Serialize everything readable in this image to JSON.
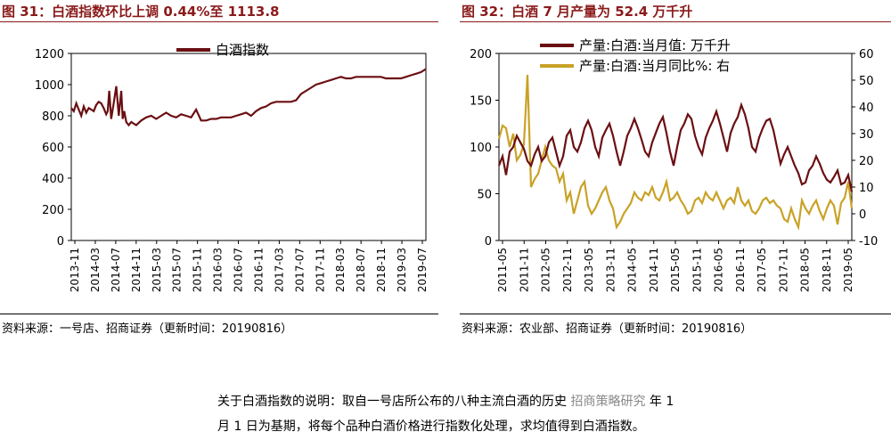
{
  "left": {
    "title": "图 31：白酒指数环比上调 0.44%至 1113.8",
    "source": "资料来源：一号店、招商证券（更新时间：20190816）"
  },
  "right": {
    "title": "图 32：白酒 7 月产量为 52.4 万千升",
    "source": "资料来源：农业部、招商证券（更新时间：20190816）"
  },
  "note": {
    "line1": "关于白酒指数的说明：取自一号店所公布的八种主流白酒的历史",
    "line1_end": "年 1",
    "watermark": "招商策略研究",
    "line2": "月 1 日为基期，将每个品种白酒价格进行指数化处理，求均值得到白酒指数。"
  },
  "colors": {
    "title": "#8B1A1A",
    "index": "#6B0F12",
    "yoy": "#C9A227"
  },
  "chart_data": [
    {
      "type": "line",
      "legend_position": "top",
      "grid": false,
      "ylim": [
        0,
        1200
      ],
      "yticks": [
        "0",
        "200",
        "400",
        "600",
        "800",
        "1000",
        "1200"
      ],
      "xticks": [
        "2013-11",
        "2014-03",
        "2014-07",
        "2014-11",
        "2015-03",
        "2015-07",
        "2015-11",
        "2016-03",
        "2016-07",
        "2016-11",
        "2017-03",
        "2017-07",
        "2017-11",
        "2018-03",
        "2018-07",
        "2018-11",
        "2019-03",
        "2019-07"
      ],
      "series": [
        {
          "name": "白酒指数",
          "color": "#6B0F12",
          "x": [
            0,
            0.5,
            1,
            1.5,
            2,
            2.5,
            3,
            3.5,
            4,
            4.5,
            5,
            5.5,
            6,
            6.5,
            7,
            7.3,
            7.6,
            8,
            8.5,
            9,
            9.5,
            10,
            10.3,
            10.6,
            11,
            11.5,
            12,
            12.5,
            13,
            14,
            15,
            16,
            17,
            18,
            19,
            20,
            21,
            22,
            23,
            24,
            25,
            26,
            27,
            28,
            29,
            30,
            31,
            32,
            33,
            34,
            35,
            36,
            37,
            38,
            39,
            40,
            41,
            42,
            43,
            44,
            45,
            46,
            47,
            48,
            49,
            50,
            51,
            52,
            53,
            54,
            55,
            56,
            57,
            58,
            59,
            60,
            61,
            62,
            63,
            64,
            65,
            66,
            67,
            68,
            69,
            70,
            71
          ],
          "values": [
            850,
            830,
            880,
            840,
            800,
            860,
            820,
            850,
            840,
            830,
            870,
            890,
            880,
            850,
            810,
            830,
            960,
            780,
            880,
            990,
            800,
            960,
            780,
            830,
            760,
            740,
            760,
            750,
            740,
            770,
            790,
            800,
            780,
            800,
            820,
            800,
            790,
            810,
            800,
            790,
            840,
            770,
            770,
            780,
            780,
            790,
            790,
            790,
            800,
            810,
            820,
            800,
            830,
            850,
            860,
            880,
            890,
            890,
            890,
            890,
            900,
            940,
            960,
            980,
            1000,
            1010,
            1020,
            1030,
            1040,
            1050,
            1040,
            1040,
            1050,
            1050,
            1050,
            1050,
            1050,
            1050,
            1040,
            1040,
            1040,
            1040,
            1050,
            1060,
            1070,
            1080,
            1100
          ]
        }
      ]
    },
    {
      "type": "line",
      "legend_position": "top",
      "grid": false,
      "ylim": [
        0,
        200
      ],
      "y2lim": [
        -10,
        60
      ],
      "yticks": [
        "0",
        "50",
        "100",
        "150",
        "200"
      ],
      "y2ticks": [
        "-10",
        "0",
        "10",
        "20",
        "30",
        "40",
        "50",
        "60"
      ],
      "xticks": [
        "2011-05",
        "2011-11",
        "2012-05",
        "2012-11",
        "2013-05",
        "2013-11",
        "2014-05",
        "2014-11",
        "2015-05",
        "2015-11",
        "2016-05",
        "2016-11",
        "2017-05",
        "2017-11",
        "2018-05",
        "2018-11",
        "2019-05"
      ],
      "series": [
        {
          "name": "产量:白酒:当月值:  万千升",
          "color": "#6B0F12",
          "axis": "left",
          "x": [
            0,
            1,
            2,
            3,
            4,
            5,
            6,
            7,
            8,
            9,
            10,
            11,
            12,
            13,
            14,
            15,
            16,
            17,
            18,
            19,
            20,
            21,
            22,
            23,
            24,
            25,
            26,
            27,
            28,
            29,
            30,
            31,
            32,
            33,
            34,
            35,
            36,
            37,
            38,
            39,
            40,
            41,
            42,
            43,
            44,
            45,
            46,
            47,
            48,
            49,
            50,
            51,
            52,
            53,
            54,
            55,
            56,
            57,
            58,
            59,
            60,
            61,
            62,
            63,
            64,
            65,
            66,
            67,
            68,
            69,
            70,
            71,
            72,
            73,
            74,
            75,
            76,
            77,
            78,
            79,
            80,
            81,
            82,
            83,
            84,
            85,
            86,
            87,
            88,
            89,
            90,
            91,
            92,
            93,
            94,
            95,
            96,
            97,
            98,
            99
          ],
          "values": [
            80,
            90,
            70,
            95,
            100,
            112,
            105,
            98,
            85,
            80,
            92,
            100,
            85,
            90,
            105,
            110,
            95,
            80,
            90,
            112,
            118,
            100,
            95,
            105,
            120,
            128,
            118,
            100,
            90,
            110,
            118,
            125,
            112,
            95,
            80,
            95,
            112,
            120,
            130,
            120,
            108,
            95,
            90,
            105,
            115,
            125,
            132,
            115,
            95,
            80,
            100,
            118,
            125,
            135,
            130,
            112,
            100,
            92,
            110,
            120,
            128,
            138,
            125,
            110,
            95,
            115,
            125,
            132,
            145,
            135,
            120,
            100,
            95,
            110,
            120,
            128,
            130,
            118,
            100,
            82,
            92,
            100,
            90,
            80,
            72,
            60,
            62,
            75,
            80,
            90,
            82,
            72,
            65,
            62,
            68,
            75,
            60,
            62,
            70,
            52
          ]
        },
        {
          "name": "产量:白酒:当月同比%:  右",
          "color": "#C9A227",
          "axis": "right",
          "x": [
            0,
            1,
            2,
            3,
            4,
            5,
            6,
            7,
            8,
            9,
            10,
            11,
            12,
            13,
            14,
            15,
            16,
            17,
            18,
            19,
            20,
            21,
            22,
            23,
            24,
            25,
            26,
            27,
            28,
            29,
            30,
            31,
            32,
            33,
            34,
            35,
            36,
            37,
            38,
            39,
            40,
            41,
            42,
            43,
            44,
            45,
            46,
            47,
            48,
            49,
            50,
            51,
            52,
            53,
            54,
            55,
            56,
            57,
            58,
            59,
            60,
            61,
            62,
            63,
            64,
            65,
            66,
            67,
            68,
            69,
            70,
            71,
            72,
            73,
            74,
            75,
            76,
            77,
            78,
            79,
            80,
            81,
            82,
            83,
            84,
            85,
            86,
            87,
            88,
            89,
            90,
            91,
            92,
            93,
            94,
            95,
            96,
            97,
            98,
            99
          ],
          "values": [
            28,
            33,
            32,
            25,
            30,
            20,
            22,
            26,
            52,
            10,
            13,
            15,
            20,
            25,
            20,
            18,
            17,
            12,
            15,
            5,
            8,
            0,
            5,
            10,
            12,
            3,
            0,
            2,
            5,
            8,
            10,
            5,
            2,
            -5,
            -3,
            0,
            2,
            4,
            8,
            6,
            5,
            8,
            7,
            10,
            6,
            5,
            8,
            12,
            5,
            6,
            8,
            5,
            3,
            0,
            1,
            5,
            6,
            4,
            8,
            6,
            5,
            8,
            5,
            2,
            5,
            6,
            4,
            10,
            5,
            3,
            5,
            1,
            0,
            2,
            5,
            6,
            4,
            5,
            3,
            2,
            -2,
            -3,
            2,
            -2,
            -5,
            5,
            2,
            0,
            3,
            5,
            1,
            -2,
            2,
            5,
            3,
            -4,
            4,
            6,
            12,
            2
          ]
        }
      ]
    }
  ]
}
